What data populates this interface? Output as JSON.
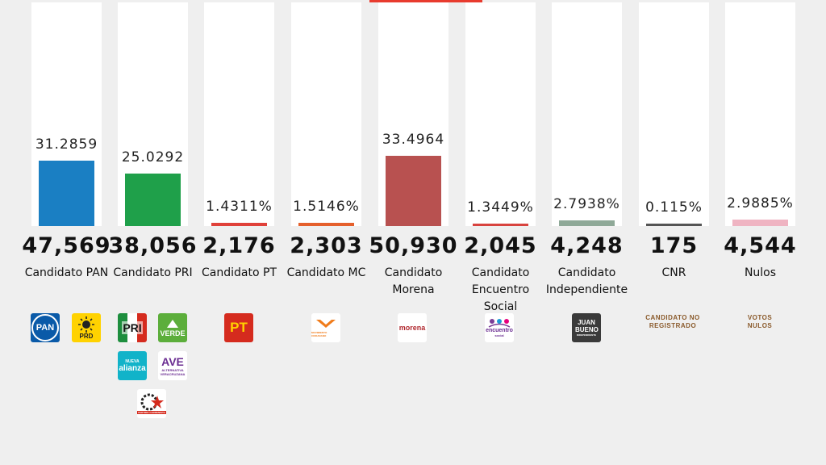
{
  "chart_data": {
    "type": "bar",
    "categories": [
      "Candidato PAN",
      "Candidato PRI",
      "Candidato PT",
      "Candidato MC",
      "Candidato Morena",
      "Candidato Encuentro Social",
      "Candidato Independiente",
      "CNR",
      "Nulos"
    ],
    "category_lines": [
      [
        "Candidato PAN"
      ],
      [
        "Candidato PRI"
      ],
      [
        "Candidato PT"
      ],
      [
        "Candidato MC"
      ],
      [
        "Candidato",
        "Morena"
      ],
      [
        "Candidato",
        "Encuentro",
        "Social"
      ],
      [
        "Candidato",
        "Independiente"
      ],
      [
        "CNR"
      ],
      [
        "Nulos"
      ]
    ],
    "values": [
      31.2859,
      25.0292,
      1.4311,
      1.5146,
      33.4964,
      1.3449,
      2.7938,
      0.115,
      2.9885
    ],
    "value_labels": [
      "31.2859",
      "25.0292",
      "1.4311%",
      "1.5146%",
      "33.4964",
      "1.3449%",
      "2.7938%",
      "0.115%",
      "2.9885%"
    ],
    "votes": [
      "47,569",
      "38,056",
      "2,176",
      "2,303",
      "50,930",
      "2,045",
      "4,248",
      "175",
      "4,544"
    ],
    "colors": [
      "#1a7fc3",
      "#1fa04a",
      "#e0413a",
      "#e5602c",
      "#b85150",
      "#d8433f",
      "#8fa998",
      "#555555",
      "#efb4c2"
    ],
    "ylim": [
      0,
      100
    ]
  },
  "logos": {
    "pan": "PAN",
    "prd": "PRD",
    "pri": "PRI",
    "verde": "VERDE",
    "nueva_alianza_top": "NUEVA",
    "nueva_alianza": "alianza",
    "ave": "AVE",
    "ave_sub": "ALTERNATIVA VERACRUZANA",
    "cardenista": "PARTIDO CARDENISTA",
    "pt": "PT",
    "mc_sub": "MOVIMIENTO CIUDADANO",
    "morena": "morena",
    "encuentro": "encuentro",
    "encuentro_sub": "social",
    "independiente_name": "JUAN BUENO",
    "independiente_sub": "INDEPENDIENTE",
    "cnr": "CANDIDATO NO REGISTRADO",
    "nulos": "VOTOS NULOS"
  }
}
